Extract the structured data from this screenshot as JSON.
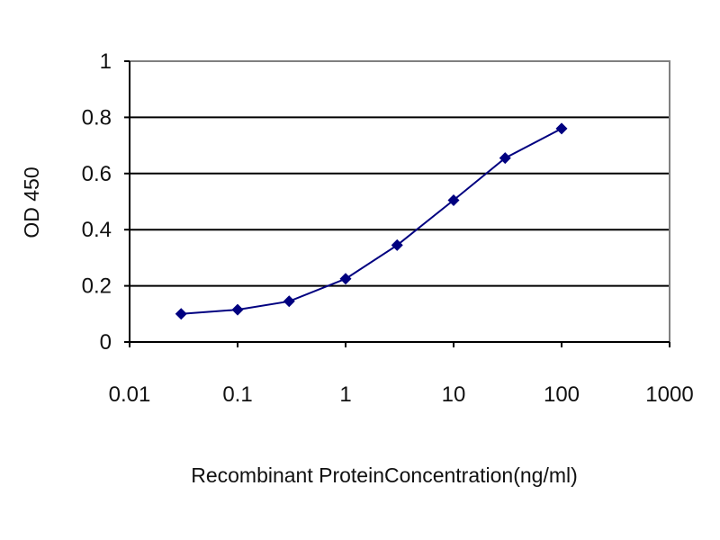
{
  "chart_data": {
    "type": "line",
    "title": "",
    "xlabel": "Recombinant ProteinConcentration(ng/ml)",
    "ylabel": "OD 450",
    "x_scale": "log",
    "xlim": [
      0.01,
      1000
    ],
    "ylim": [
      0,
      1
    ],
    "x_tick_labels": [
      "0.01",
      "0.1",
      "1",
      "10",
      "100",
      "1000"
    ],
    "x_tick_values": [
      0.01,
      0.1,
      1,
      10,
      100,
      1000
    ],
    "y_tick_labels": [
      "0",
      "0.2",
      "0.4",
      "0.6",
      "0.8",
      "1"
    ],
    "y_tick_values": [
      0,
      0.2,
      0.4,
      0.6,
      0.8,
      1
    ],
    "grid": "horizontal",
    "legend": "none",
    "series": [
      {
        "x": [
          0.03,
          0.1,
          0.3,
          1,
          3,
          10,
          30,
          100
        ],
        "y": [
          0.1,
          0.115,
          0.145,
          0.225,
          0.345,
          0.505,
          0.655,
          0.76
        ],
        "marker": "diamond",
        "color": "#000080"
      }
    ],
    "colors": {
      "line": "#000080",
      "marker": "#000080",
      "grid": "#000000",
      "frame": "#808080",
      "plot_background": "#ffffff"
    }
  }
}
